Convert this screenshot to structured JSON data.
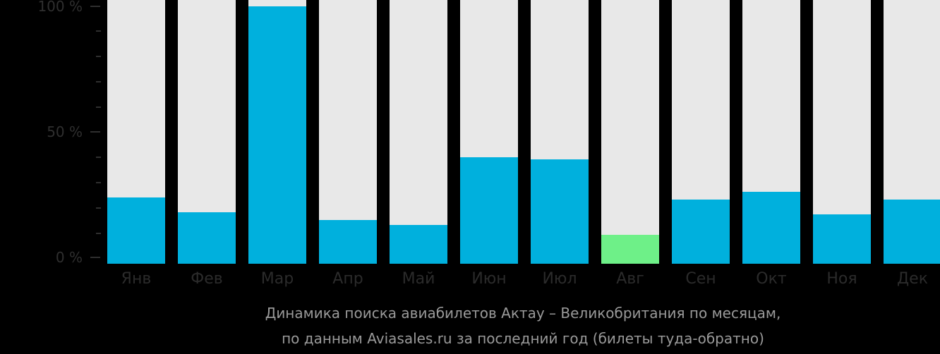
{
  "chart_data": {
    "type": "bar",
    "title": "Динамика поиска авиабилетов Актау – Великобритания по месяцам,",
    "subtitle": "по данным Aviasales.ru за последний год (билеты туда-обратно)",
    "xlabel": "",
    "ylabel": "",
    "ylim": [
      0,
      100
    ],
    "yticks": [
      "0 %",
      "50 %",
      "100 %"
    ],
    "grid": false,
    "legend": null,
    "categories": [
      "Янв",
      "Фев",
      "Мар",
      "Апр",
      "Май",
      "Июн",
      "Июл",
      "Авг",
      "Сен",
      "Окт",
      "Ноя",
      "Дек"
    ],
    "values": [
      24,
      18,
      100,
      15,
      13,
      40,
      39,
      9,
      23,
      26,
      17,
      23
    ],
    "highlight": {
      "max_index": 2,
      "min_index": 7
    },
    "colors": {
      "bar": "#00b0dd",
      "min_bar": "#6ef088",
      "background_bar": "#e8e8e8"
    }
  },
  "yaxis": {
    "labels": [
      "100 %",
      "50 %",
      "0 %"
    ]
  },
  "xaxis": {
    "labels": [
      "Янв",
      "Фев",
      "Мар",
      "Апр",
      "Май",
      "Июн",
      "Июл",
      "Авг",
      "Сен",
      "Окт",
      "Ноя",
      "Дек"
    ]
  },
  "caption": {
    "line1": "Динамика поиска авиабилетов Актау – Великобритания по месяцам,",
    "line2": "по данным Aviasales.ru за последний год (билеты туда-обратно)"
  }
}
